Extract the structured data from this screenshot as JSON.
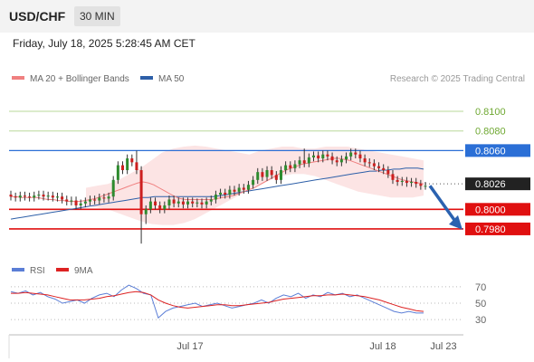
{
  "header": {
    "symbol": "USD/CHF",
    "timeframe": "30 MIN"
  },
  "datetime": "Friday, July 18, 2025 5:28:45 AM CET",
  "legend": {
    "ma20_label": "MA 20 + Bollinger Bands",
    "ma50_label": "MA 50",
    "copyright": "Research © 2025 Trading Central"
  },
  "colors": {
    "ma20": "#f08080",
    "ma50": "#2d5fa8",
    "bollinger_fill": "#fbd9d9",
    "candle_up": "#2e8b2e",
    "candle_down": "#cc1f1f",
    "wick": "#333333",
    "resistance_green": "#6fa832",
    "pivot_blue": "#2b6fd6",
    "support_red": "#e01010",
    "current_price": "#222222",
    "forecast_arrow": "#2b62b0",
    "rsi": "#5b7ed6",
    "rsi_ma": "#dd2222"
  },
  "chart_data": [
    {
      "type": "candlestick",
      "title": "USD/CHF",
      "y_range": [
        0.7955,
        0.8125
      ],
      "x_ticks": [
        "Jul 17",
        "Jul 18",
        "Jul 23"
      ],
      "levels": [
        {
          "label": "0.8100",
          "value": 0.81,
          "kind": "resistance"
        },
        {
          "label": "0.8080",
          "value": 0.808,
          "kind": "resistance"
        },
        {
          "label": "0.8060",
          "value": 0.806,
          "kind": "pivot"
        },
        {
          "label": "0.8026",
          "value": 0.8026,
          "kind": "current"
        },
        {
          "label": "0.8000",
          "value": 0.8,
          "kind": "support"
        },
        {
          "label": "0.7980",
          "value": 0.798,
          "kind": "support"
        }
      ],
      "forecast": {
        "direction": "down",
        "from": 0.8024,
        "to": 0.7981
      },
      "closes": [
        0.8013,
        0.8012,
        0.8014,
        0.8013,
        0.8012,
        0.8014,
        0.8015,
        0.8013,
        0.8014,
        0.8012,
        0.8013,
        0.801,
        0.8008,
        0.8009,
        0.8004,
        0.8006,
        0.8008,
        0.801,
        0.8009,
        0.8012,
        0.8011,
        0.8013,
        0.803,
        0.8045,
        0.804,
        0.8052,
        0.8048,
        0.804,
        0.7995,
        0.8,
        0.8008,
        0.8004,
        0.8,
        0.8004,
        0.801,
        0.8006,
        0.8008,
        0.8005,
        0.8008,
        0.8006,
        0.8007,
        0.8005,
        0.8008,
        0.801,
        0.8015,
        0.8017,
        0.8015,
        0.802,
        0.8018,
        0.8022,
        0.802,
        0.8025,
        0.803,
        0.8038,
        0.8033,
        0.804,
        0.8035,
        0.803,
        0.804,
        0.8045,
        0.8042,
        0.8046,
        0.805,
        0.8047,
        0.8053,
        0.8055,
        0.8052,
        0.8056,
        0.8054,
        0.805,
        0.8048,
        0.8051,
        0.8054,
        0.8058,
        0.8056,
        0.8052,
        0.8048,
        0.8047,
        0.8044,
        0.8042,
        0.804,
        0.8036,
        0.803,
        0.8028,
        0.8029,
        0.8027,
        0.8028,
        0.8026,
        0.8024,
        0.8024
      ],
      "ma20": [
        0.8013,
        0.8013,
        0.8012,
        0.8012,
        0.8012,
        0.8012,
        0.8011,
        0.801,
        0.801,
        0.8009,
        0.8009,
        0.8008,
        0.8008,
        0.8008,
        0.8009,
        0.801,
        0.8011,
        0.8013,
        0.8015,
        0.8017,
        0.8019,
        0.8021,
        0.8023,
        0.8025,
        0.8027,
        0.8028,
        0.8027,
        0.8025,
        0.8022,
        0.8019,
        0.8016,
        0.8013,
        0.8011,
        0.801,
        0.801,
        0.801,
        0.801,
        0.801,
        0.801,
        0.8011,
        0.8012,
        0.8013,
        0.8014,
        0.8016,
        0.8018,
        0.802,
        0.8022,
        0.8025,
        0.8028,
        0.8031,
        0.8034,
        0.8037,
        0.804,
        0.8042,
        0.8044,
        0.8046,
        0.8047,
        0.8048,
        0.8049,
        0.805,
        0.8051,
        0.8052,
        0.8052,
        0.8051,
        0.805,
        0.8048,
        0.8046,
        0.8044,
        0.8042,
        0.804,
        0.8038,
        0.8036,
        0.8034,
        0.8032,
        0.803,
        0.8029,
        0.8028,
        0.8027,
        0.8026
      ],
      "ma50": [
        0.799,
        0.7991,
        0.7992,
        0.7993,
        0.7994,
        0.7995,
        0.7996,
        0.7997,
        0.7998,
        0.7999,
        0.8,
        0.8001,
        0.8002,
        0.8003,
        0.8004,
        0.8005,
        0.8006,
        0.8007,
        0.8008,
        0.8009,
        0.801,
        0.8011,
        0.8012,
        0.8012,
        0.8013,
        0.8013,
        0.8013,
        0.8013,
        0.8013,
        0.8013,
        0.8013,
        0.8013,
        0.8013,
        0.8013,
        0.8013,
        0.8014,
        0.8015,
        0.8016,
        0.8017,
        0.8018,
        0.8019,
        0.802,
        0.8021,
        0.8022,
        0.8023,
        0.8024,
        0.8025,
        0.8026,
        0.8027,
        0.8028,
        0.8029,
        0.803,
        0.8031,
        0.8032,
        0.8033,
        0.8034,
        0.8035,
        0.8036,
        0.8037,
        0.8038,
        0.8039,
        0.8039,
        0.804,
        0.804,
        0.8041,
        0.8041,
        0.8042,
        0.8042,
        0.8042,
        0.8041
      ],
      "bollinger_upper": [
        0.8022,
        0.8024,
        0.8026,
        0.803,
        0.8036,
        0.8042,
        0.805,
        0.8058,
        0.8062,
        0.8064,
        0.8065,
        0.8064,
        0.8062,
        0.806,
        0.8058,
        0.8056,
        0.806,
        0.8062,
        0.8064,
        0.8064,
        0.8062,
        0.8062,
        0.8064,
        0.8064,
        0.8064,
        0.8062,
        0.806,
        0.8058,
        0.8056,
        0.8054,
        0.8052,
        0.805
      ],
      "bollinger_lower": [
        0.8004,
        0.8002,
        0.8,
        0.7996,
        0.7992,
        0.7988,
        0.7985,
        0.7984,
        0.7984,
        0.7986,
        0.799,
        0.7996,
        0.8002,
        0.8008,
        0.8014,
        0.802,
        0.8026,
        0.803,
        0.8034,
        0.8036,
        0.8036,
        0.8034,
        0.803,
        0.8026,
        0.8022,
        0.8018,
        0.8016,
        0.8014,
        0.8012,
        0.8012,
        0.8012,
        0.8014
      ]
    },
    {
      "type": "line",
      "title": "RSI",
      "series": [
        {
          "name": "RSI",
          "values": [
            64,
            62,
            65,
            60,
            63,
            58,
            55,
            50,
            52,
            54,
            50,
            56,
            60,
            62,
            58,
            66,
            72,
            68,
            62,
            60,
            32,
            40,
            44,
            46,
            48,
            50,
            46,
            48,
            50,
            47,
            44,
            46,
            48,
            50,
            54,
            50,
            56,
            60,
            58,
            62,
            56,
            60,
            58,
            63,
            60,
            62,
            58,
            60,
            56,
            52,
            48,
            44,
            40,
            38,
            40,
            38,
            38
          ]
        },
        {
          "name": "9MA",
          "values": [
            62,
            62,
            63,
            62,
            61,
            60,
            58,
            56,
            54,
            54,
            54,
            55,
            56,
            58,
            59,
            61,
            63,
            64,
            63,
            60,
            54,
            50,
            47,
            45,
            44,
            45,
            46,
            47,
            48,
            48,
            47,
            47,
            48,
            49,
            50,
            51,
            53,
            55,
            56,
            57,
            58,
            59,
            59,
            60,
            60,
            61,
            60,
            59,
            58,
            56,
            54,
            51,
            48,
            45,
            43,
            41,
            40
          ]
        }
      ],
      "y_ticks": [
        70,
        50,
        30
      ],
      "y_range": [
        18,
        82
      ]
    }
  ]
}
